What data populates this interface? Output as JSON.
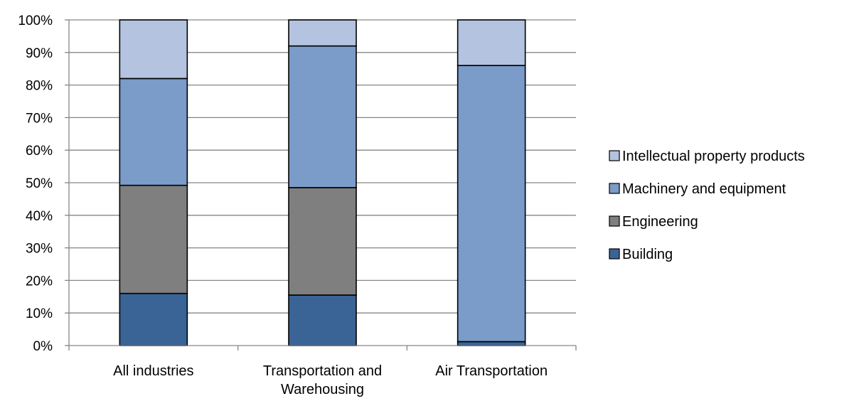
{
  "chart_data": {
    "type": "bar",
    "stacked": true,
    "percent_stacked": true,
    "categories": [
      "All industries",
      "Transportation and Warehousing",
      "Air Transportation"
    ],
    "category_label_lines": [
      [
        "All industries"
      ],
      [
        "Transportation and",
        "Warehousing"
      ],
      [
        "Air Transportation"
      ]
    ],
    "series": [
      {
        "name": "Building",
        "values": [
          16,
          15.5,
          1.2
        ],
        "color": "#3a6496"
      },
      {
        "name": "Engineering",
        "values": [
          33.2,
          33,
          0
        ],
        "color": "#7f7f7f"
      },
      {
        "name": "Machinery and equipment",
        "values": [
          32.8,
          43.5,
          84.8
        ],
        "color": "#7b9bc8"
      },
      {
        "name": "Intellectual property products",
        "values": [
          18,
          8,
          14
        ],
        "color": "#b4c3df"
      }
    ],
    "legend_order": [
      "Intellectual property products",
      "Machinery and equipment",
      "Engineering",
      "Building"
    ],
    "y_ticks": [
      "0%",
      "10%",
      "20%",
      "30%",
      "40%",
      "50%",
      "60%",
      "70%",
      "80%",
      "90%",
      "100%"
    ],
    "ylim": [
      0,
      100
    ],
    "grid": true,
    "legend_position": "right",
    "title": "",
    "xlabel": "",
    "ylabel": ""
  }
}
